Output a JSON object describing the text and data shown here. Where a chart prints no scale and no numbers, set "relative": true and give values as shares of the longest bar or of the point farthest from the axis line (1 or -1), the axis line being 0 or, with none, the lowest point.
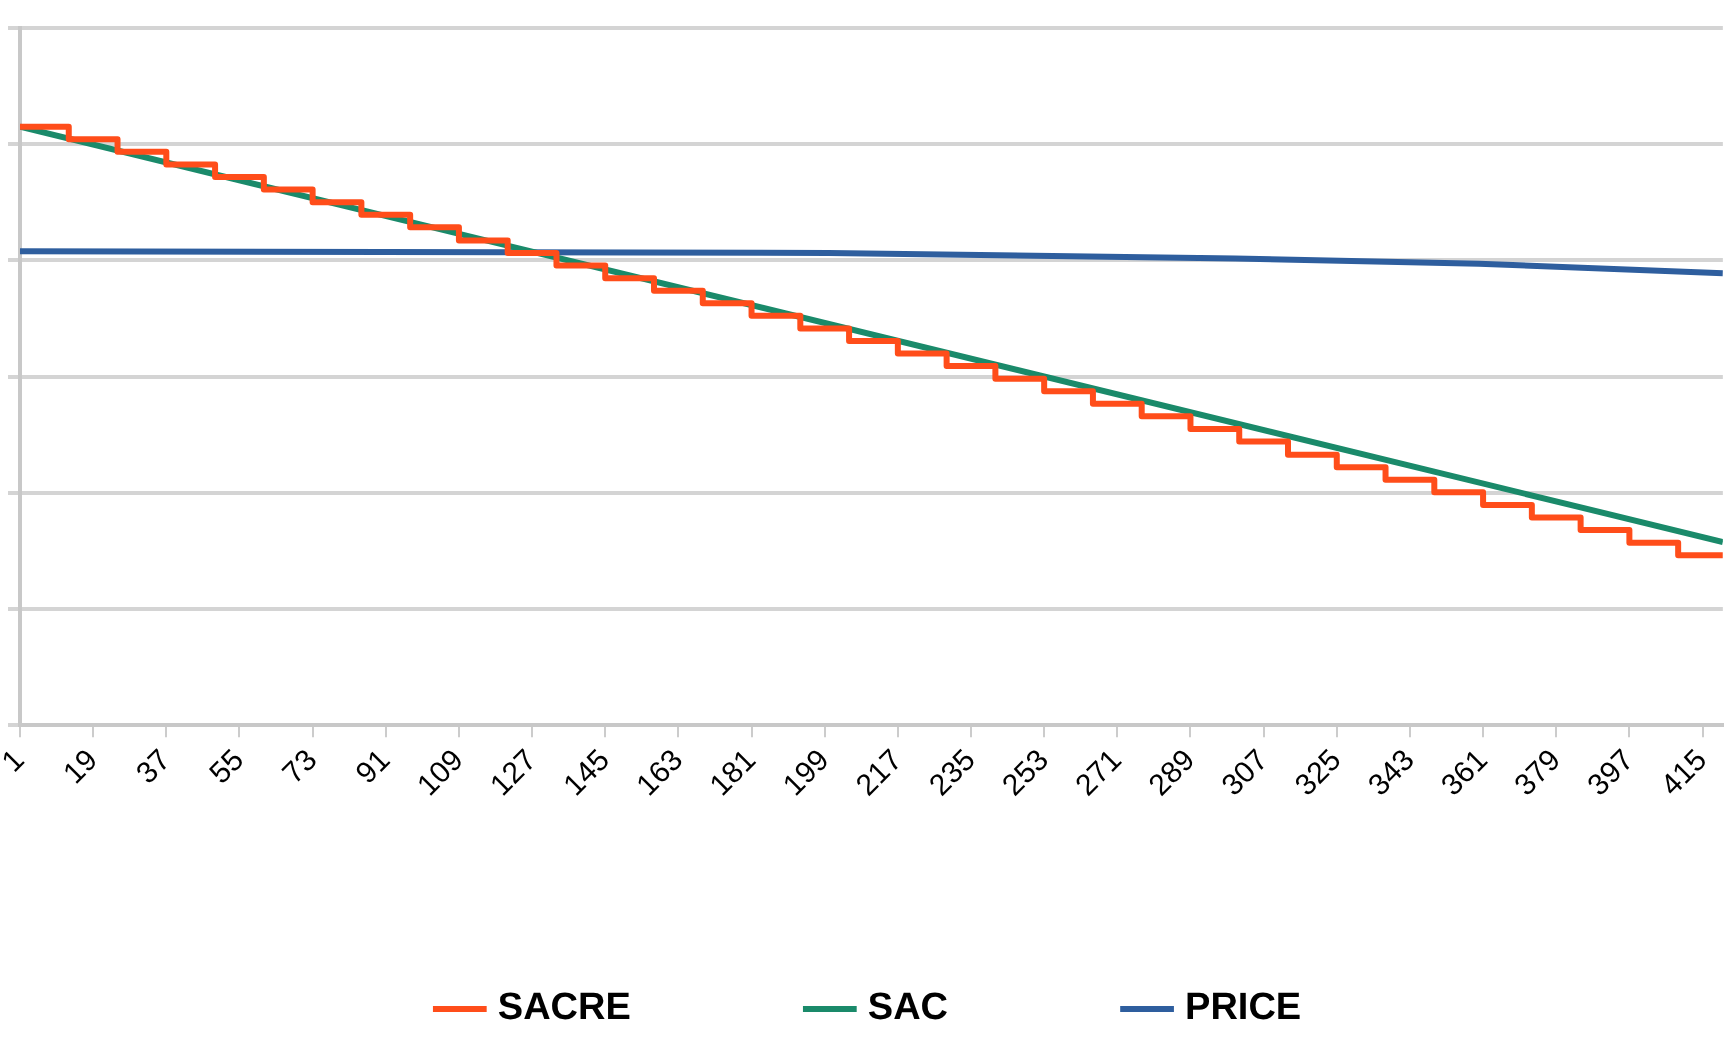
{
  "chart_data": {
    "type": "line",
    "relative": true,
    "xlim": [
      1,
      420
    ],
    "xticks": [
      1,
      19,
      37,
      55,
      73,
      91,
      109,
      127,
      145,
      163,
      181,
      199,
      217,
      235,
      253,
      271,
      289,
      307,
      325,
      343,
      361,
      379,
      397,
      415
    ],
    "grid": "y",
    "legend": "bottom",
    "line_style": "solid",
    "marker": "none",
    "series": [
      {
        "name": "SACRE",
        "type": "step",
        "color": "#ff4d1a",
        "x": [
          1,
          13,
          25,
          37,
          49,
          61,
          73,
          85,
          97,
          109,
          121,
          133,
          145,
          157,
          169,
          181,
          193,
          205,
          217,
          229,
          241,
          253,
          265,
          277,
          289,
          301,
          313,
          325,
          337,
          349,
          361,
          373,
          385,
          397,
          409,
          420
        ],
        "values": [
          1.0,
          0.979,
          0.958,
          0.937,
          0.916,
          0.895,
          0.874,
          0.853,
          0.832,
          0.81,
          0.789,
          0.768,
          0.747,
          0.726,
          0.705,
          0.684,
          0.663,
          0.642,
          0.621,
          0.6,
          0.579,
          0.558,
          0.537,
          0.516,
          0.495,
          0.474,
          0.452,
          0.431,
          0.41,
          0.389,
          0.368,
          0.347,
          0.326,
          0.305,
          0.284,
          0.284
        ]
      },
      {
        "name": "SAC",
        "type": "line",
        "color": "#1a8a6a",
        "x": [
          1,
          420
        ],
        "values": [
          1.0,
          0.306
        ]
      },
      {
        "name": "PRICE",
        "type": "line",
        "color": "#2e5e9e",
        "x": [
          1,
          200,
          300,
          360,
          420
        ],
        "values": [
          0.792,
          0.789,
          0.78,
          0.771,
          0.755
        ]
      }
    ]
  }
}
